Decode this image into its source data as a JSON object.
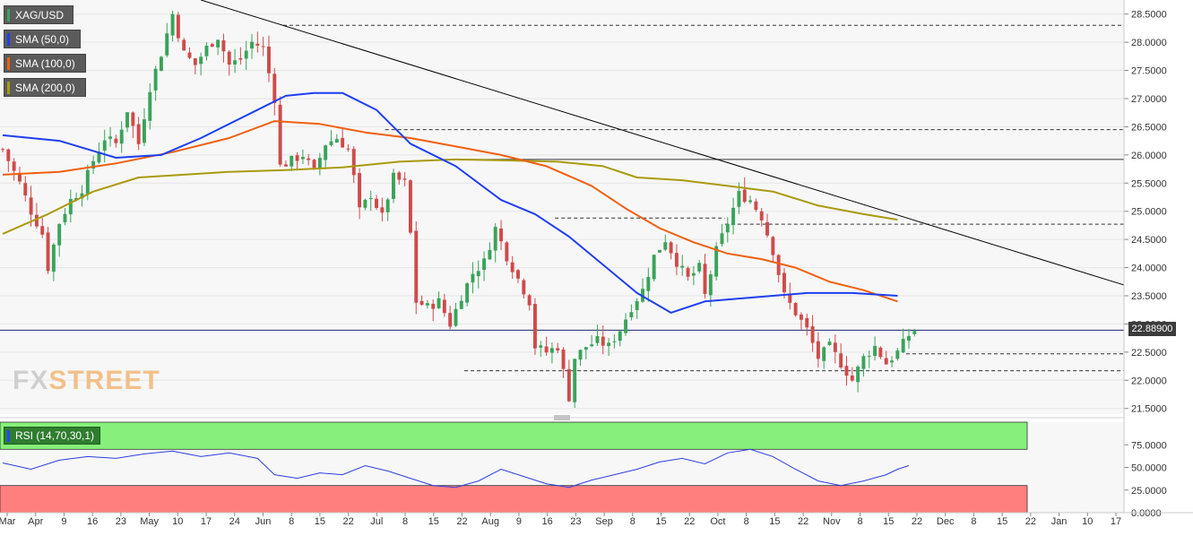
{
  "legend": {
    "symbol": "XAG/USD",
    "sma50": "SMA (50,0)",
    "sma100": "SMA (100,0)",
    "sma200": "SMA (200,0)",
    "rsi": "RSI (14,70,30,1)"
  },
  "watermark": {
    "left": "FX",
    "right": "STREET"
  },
  "colors": {
    "sma50": "#1f3ff0",
    "sma100": "#f06010",
    "sma200": "#a99a10",
    "rsi_line": "#2c3fe0",
    "overbought_zone": "#86f07a",
    "oversold_zone": "#ff7f7f",
    "bull": "#3aa35a",
    "bear": "#cf4a4a",
    "trendline": "#000000"
  },
  "chart_data": [
    {
      "type": "candlestick",
      "title": "XAG/USD",
      "current_price": "22.88900",
      "y_ticks": [
        "28.5000",
        "28.0000",
        "27.5000",
        "27.0000",
        "26.5000",
        "26.0000",
        "25.5000",
        "25.0000",
        "24.5000",
        "24.0000",
        "23.5000",
        "23.0000",
        "22.5000",
        "22.0000",
        "21.5000"
      ],
      "ylim": [
        21.4,
        28.75
      ],
      "x_ticks": [
        "Mar",
        "Apr",
        "9",
        "16",
        "23",
        "May",
        "10",
        "17",
        "24",
        "Jun",
        "8",
        "15",
        "22",
        "Jul",
        "8",
        "15",
        "22",
        "Aug",
        "9",
        "16",
        "23",
        "Sep",
        "8",
        "15",
        "22",
        "Oct",
        "8",
        "15",
        "22",
        "Nov",
        "8",
        "15",
        "22",
        "Dec",
        "8",
        "15",
        "22",
        "Jan",
        "10",
        "17"
      ],
      "close_path": [
        [
          0,
          26.1
        ],
        [
          3,
          25.5
        ],
        [
          5,
          25.0
        ],
        [
          7,
          24.6
        ],
        [
          8,
          24.0
        ],
        [
          10,
          24.8
        ],
        [
          12,
          25.2
        ],
        [
          14,
          25.4
        ],
        [
          16,
          25.9
        ],
        [
          18,
          26.3
        ],
        [
          20,
          26.2
        ],
        [
          22,
          26.8
        ],
        [
          24,
          26.2
        ],
        [
          26,
          27.2
        ],
        [
          28,
          27.8
        ],
        [
          30,
          28.5
        ],
        [
          32,
          27.8
        ],
        [
          34,
          27.6
        ],
        [
          36,
          27.9
        ],
        [
          38,
          28.1
        ],
        [
          40,
          27.6
        ],
        [
          42,
          27.7
        ],
        [
          44,
          28.0
        ],
        [
          46,
          27.9
        ],
        [
          48,
          27.0
        ],
        [
          49,
          25.8
        ],
        [
          51,
          25.9
        ],
        [
          53,
          26.0
        ],
        [
          55,
          25.7
        ],
        [
          57,
          26.2
        ],
        [
          59,
          26.3
        ],
        [
          61,
          26.1
        ],
        [
          62,
          25.6
        ],
        [
          63,
          25.0
        ],
        [
          65,
          25.3
        ],
        [
          67,
          24.9
        ],
        [
          69,
          25.6
        ],
        [
          71,
          25.5
        ],
        [
          72,
          24.6
        ],
        [
          73,
          23.4
        ],
        [
          75,
          23.3
        ],
        [
          77,
          23.4
        ],
        [
          79,
          23.0
        ],
        [
          81,
          23.5
        ],
        [
          83,
          23.9
        ],
        [
          85,
          24.1
        ],
        [
          87,
          24.7
        ],
        [
          89,
          24.2
        ],
        [
          91,
          23.8
        ],
        [
          93,
          23.4
        ],
        [
          94,
          22.6
        ],
        [
          96,
          22.5
        ],
        [
          98,
          22.6
        ],
        [
          100,
          21.7
        ],
        [
          101,
          22.4
        ],
        [
          103,
          22.6
        ],
        [
          105,
          22.7
        ],
        [
          107,
          22.6
        ],
        [
          109,
          22.9
        ],
        [
          111,
          23.3
        ],
        [
          113,
          23.6
        ],
        [
          115,
          24.2
        ],
        [
          117,
          24.5
        ],
        [
          119,
          24.1
        ],
        [
          121,
          23.8
        ],
        [
          123,
          24.0
        ],
        [
          124,
          23.5
        ],
        [
          126,
          24.3
        ],
        [
          128,
          24.8
        ],
        [
          130,
          25.3
        ],
        [
          132,
          25.2
        ],
        [
          134,
          24.9
        ],
        [
          136,
          24.3
        ],
        [
          138,
          23.5
        ],
        [
          140,
          23.2
        ],
        [
          142,
          22.9
        ],
        [
          144,
          22.4
        ],
        [
          146,
          22.6
        ],
        [
          148,
          22.3
        ],
        [
          150,
          22.0
        ],
        [
          152,
          22.4
        ],
        [
          154,
          22.6
        ],
        [
          156,
          22.3
        ],
        [
          158,
          22.5
        ],
        [
          160,
          22.8
        ],
        [
          161,
          22.89
        ]
      ],
      "x_end_index": 161,
      "sma50": [
        [
          0,
          26.35
        ],
        [
          10,
          26.25
        ],
        [
          20,
          25.95
        ],
        [
          28,
          26.0
        ],
        [
          35,
          26.3
        ],
        [
          44,
          26.75
        ],
        [
          50,
          27.05
        ],
        [
          55,
          27.1
        ],
        [
          60,
          27.1
        ],
        [
          66,
          26.8
        ],
        [
          72,
          26.2
        ],
        [
          80,
          25.8
        ],
        [
          88,
          25.2
        ],
        [
          94,
          24.95
        ],
        [
          100,
          24.55
        ],
        [
          106,
          24.05
        ],
        [
          112,
          23.55
        ],
        [
          118,
          23.2
        ],
        [
          124,
          23.4
        ],
        [
          130,
          23.45
        ],
        [
          136,
          23.5
        ],
        [
          142,
          23.55
        ],
        [
          150,
          23.55
        ],
        [
          158,
          23.5
        ]
      ],
      "sma100": [
        [
          0,
          25.65
        ],
        [
          10,
          25.7
        ],
        [
          20,
          25.85
        ],
        [
          30,
          26.05
        ],
        [
          40,
          26.3
        ],
        [
          48,
          26.6
        ],
        [
          56,
          26.55
        ],
        [
          64,
          26.4
        ],
        [
          72,
          26.3
        ],
        [
          80,
          26.15
        ],
        [
          88,
          26.0
        ],
        [
          96,
          25.8
        ],
        [
          104,
          25.45
        ],
        [
          110,
          25.05
        ],
        [
          116,
          24.7
        ],
        [
          122,
          24.45
        ],
        [
          128,
          24.25
        ],
        [
          134,
          24.15
        ],
        [
          140,
          24.0
        ],
        [
          146,
          23.75
        ],
        [
          152,
          23.6
        ],
        [
          158,
          23.4
        ]
      ],
      "sma200": [
        [
          0,
          24.6
        ],
        [
          8,
          24.95
        ],
        [
          16,
          25.35
        ],
        [
          24,
          25.6
        ],
        [
          32,
          25.65
        ],
        [
          40,
          25.7
        ],
        [
          50,
          25.73
        ],
        [
          60,
          25.78
        ],
        [
          70,
          25.88
        ],
        [
          80,
          25.92
        ],
        [
          90,
          25.9
        ],
        [
          98,
          25.88
        ],
        [
          106,
          25.8
        ],
        [
          112,
          25.6
        ],
        [
          120,
          25.55
        ],
        [
          128,
          25.45
        ],
        [
          136,
          25.35
        ],
        [
          144,
          25.1
        ],
        [
          152,
          24.95
        ],
        [
          158,
          24.85
        ]
      ],
      "trendline": [
        [
          35,
          28.75
        ],
        [
          180,
          24.25
        ]
      ],
      "horizontal_levels": [
        {
          "value": 28.3,
          "from": 50,
          "style": "dashed"
        },
        {
          "value": 26.45,
          "from": 68,
          "style": "dashed"
        },
        {
          "value": 25.92,
          "from": 78,
          "style": "solid"
        },
        {
          "value": 24.88,
          "from": 98,
          "to": 128,
          "style": "dashed"
        },
        {
          "value": 24.77,
          "from": 128,
          "style": "dashed"
        },
        {
          "value": 22.47,
          "from": 160,
          "style": "dashed"
        },
        {
          "value": 22.17,
          "from": 82,
          "style": "dashed"
        }
      ]
    },
    {
      "type": "line",
      "title": "RSI (14,70,30,1)",
      "y_ticks": [
        "75.0000",
        "50.0000",
        "25.0000",
        "0.0000"
      ],
      "ylim": [
        0,
        100
      ],
      "overbought": 70,
      "oversold": 30,
      "values": [
        [
          0,
          55
        ],
        [
          5,
          48
        ],
        [
          10,
          58
        ],
        [
          15,
          62
        ],
        [
          20,
          60
        ],
        [
          25,
          65
        ],
        [
          30,
          68
        ],
        [
          35,
          62
        ],
        [
          40,
          66
        ],
        [
          45,
          60
        ],
        [
          48,
          42
        ],
        [
          52,
          38
        ],
        [
          56,
          44
        ],
        [
          60,
          42
        ],
        [
          64,
          52
        ],
        [
          68,
          46
        ],
        [
          72,
          38
        ],
        [
          76,
          30
        ],
        [
          80,
          28
        ],
        [
          84,
          35
        ],
        [
          88,
          48
        ],
        [
          92,
          40
        ],
        [
          96,
          32
        ],
        [
          100,
          28
        ],
        [
          104,
          36
        ],
        [
          108,
          42
        ],
        [
          112,
          48
        ],
        [
          116,
          56
        ],
        [
          120,
          60
        ],
        [
          124,
          54
        ],
        [
          128,
          66
        ],
        [
          132,
          70
        ],
        [
          136,
          62
        ],
        [
          140,
          48
        ],
        [
          144,
          35
        ],
        [
          148,
          30
        ],
        [
          152,
          35
        ],
        [
          156,
          42
        ],
        [
          158,
          48
        ],
        [
          160,
          52
        ]
      ]
    }
  ]
}
